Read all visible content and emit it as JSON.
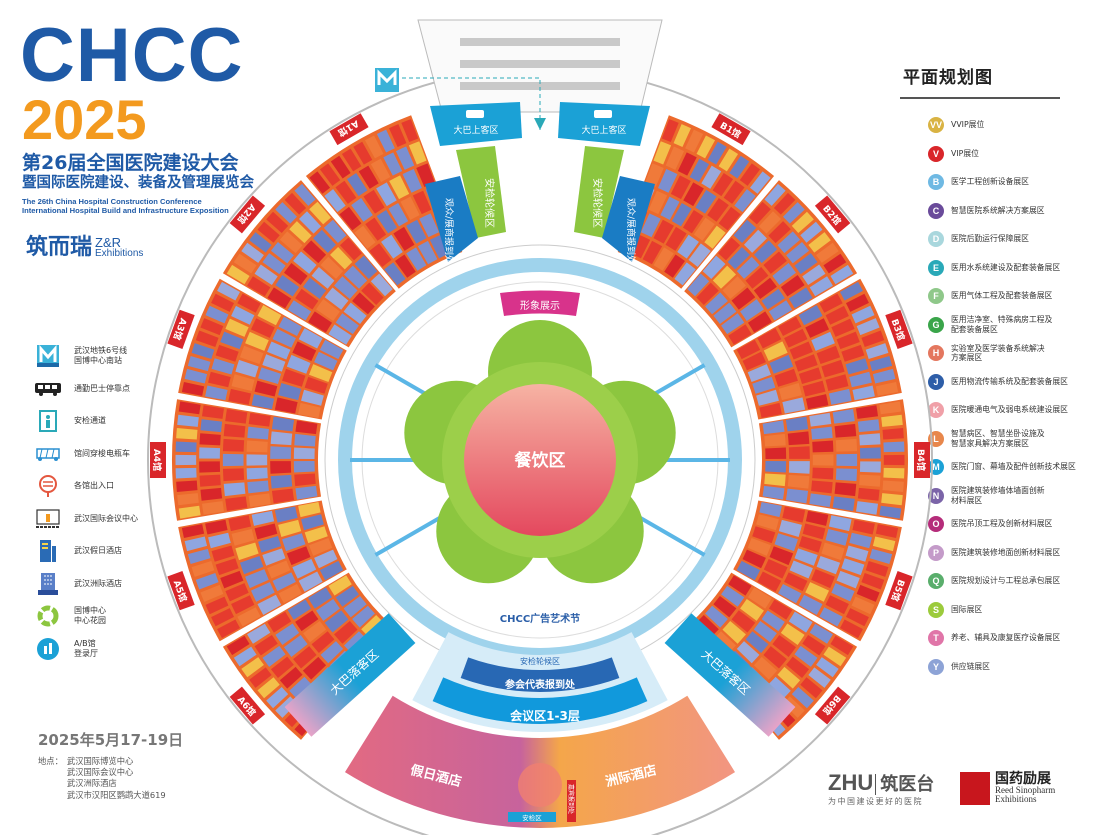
{
  "header": {
    "logo": "CHCC",
    "year": "2025",
    "title_cn_1": "第26届全国医院建设大会",
    "title_cn_2": "暨国际医院建设、装备及管理展览会",
    "title_en_1": "The 26th China Hospital Construction Conference",
    "title_en_2": "International Hospital Build and Infrastructure Exposition",
    "organizer_cn": "筑而瑞",
    "organizer_en_1": "Z&R",
    "organizer_en_2": "Exhibitions"
  },
  "legend_left": [
    {
      "icon": "metro-icon",
      "label": "武汉地铁6号线\n国博中心南站"
    },
    {
      "icon": "bus-icon",
      "label": "通勤巴士停靠点"
    },
    {
      "icon": "security-gate-icon",
      "label": "安检通道"
    },
    {
      "icon": "shuttle-cart-icon",
      "label": "馆间穿梭电瓶车"
    },
    {
      "icon": "entrance-icon",
      "label": "各馆出入口"
    },
    {
      "icon": "conference-center-icon",
      "label": "武汉国际会议中心"
    },
    {
      "icon": "holiday-inn-icon",
      "label": "武汉假日酒店"
    },
    {
      "icon": "intercontinental-icon",
      "label": "武汉洲际酒店"
    },
    {
      "icon": "garden-icon",
      "label": "国博中心\n中心花园"
    },
    {
      "icon": "registration-hall-icon",
      "label": "A/B馆\n登录厅"
    }
  ],
  "legend_right": {
    "title": "平面规划图",
    "items": [
      {
        "code": "VV",
        "color": "#d9b343",
        "label": "VVIP展位"
      },
      {
        "code": "V",
        "color": "#d9262a",
        "label": "VIP展位"
      },
      {
        "code": "B",
        "color": "#6fb9e3",
        "label": "医学工程创新设备展区"
      },
      {
        "code": "C",
        "color": "#6a4b9a",
        "label": "智慧医院系统解决方案展区"
      },
      {
        "code": "D",
        "color": "#a9d7dd",
        "label": "医院后勤运行保障展区"
      },
      {
        "code": "E",
        "color": "#2aa9b8",
        "label": "医用水系统建设及配套装备展区"
      },
      {
        "code": "F",
        "color": "#8fc88a",
        "label": "医用气体工程及配套装备展区"
      },
      {
        "code": "G",
        "color": "#3aa54a",
        "label": "医用洁净室、特殊病房工程及\n配套装备展区"
      },
      {
        "code": "H",
        "color": "#e4775f",
        "label": "实验室及医学装备系统解决\n方案展区"
      },
      {
        "code": "J",
        "color": "#2e5ea8",
        "label": "医用物流传输系统及配套装备展区"
      },
      {
        "code": "K",
        "color": "#f0a0a8",
        "label": "医院暖通电气及弱电系统建设展区"
      },
      {
        "code": "L",
        "color": "#e8874c",
        "label": "智慧病区、智慧坐卧设施及\n智慧家具解决方案展区"
      },
      {
        "code": "M",
        "color": "#1ba1d6",
        "label": "医院门窗、幕墙及配件创新技术展区"
      },
      {
        "code": "N",
        "color": "#7b64a8",
        "label": "医院建筑装修墙体墙面创新\n材料展区"
      },
      {
        "code": "O",
        "color": "#b52c7a",
        "label": "医院吊顶工程及创新材料展区"
      },
      {
        "code": "P",
        "color": "#c49bc9",
        "label": "医院建筑装修地面创新材料展区"
      },
      {
        "code": "Q",
        "color": "#5aae6c",
        "label": "医院规划设计与工程总承包展区"
      },
      {
        "code": "S",
        "color": "#9ccb3c",
        "label": "国际展区"
      },
      {
        "code": "T",
        "color": "#e075a8",
        "label": "养老、辅具及康复医疗设备展区"
      },
      {
        "code": "Y",
        "color": "#8da3d6",
        "label": "供应链展区"
      }
    ]
  },
  "map": {
    "halls_left": [
      "A1馆",
      "A2馆",
      "A3馆",
      "A4馆",
      "A5馆",
      "A6馆"
    ],
    "halls_right": [
      "B1馆",
      "B2馆",
      "B3馆",
      "B4馆",
      "B5馆",
      "B6馆"
    ],
    "bus_pickup": "大巴上客区",
    "bus_dropoff": "大巴落客区",
    "security_queue": "安检轮候区",
    "visitor_registration": "观众/展商报到处",
    "image_display": "形象展示",
    "dining": "餐饮区",
    "ad_festival": "CHCC广告艺术节",
    "delegate_registration": "参会代表报到处",
    "conference": "会议区1-3层",
    "holiday_inn": "假日酒店",
    "intercontinental": "洲际酒店",
    "security_area": "安检区",
    "vip_registration": "嘉宾报到处"
  },
  "footer": {
    "date": "2025年5月17-19日",
    "address_label": "地点：",
    "address_lines": [
      "武汉国际博览中心",
      "武汉国际会议中心",
      "武汉洲际酒店",
      "武汉市汉阳区鹦鹉大道619"
    ],
    "sponsor_1": "ZHU",
    "sponsor_1_cn": "筑医台",
    "sponsor_1_slogan": "为中国建设更好的医院",
    "sponsor_2_cn": "国药励展",
    "sponsor_2_en_1": "Reed Sinopharm",
    "sponsor_2_en_2": "Exhibitions"
  }
}
